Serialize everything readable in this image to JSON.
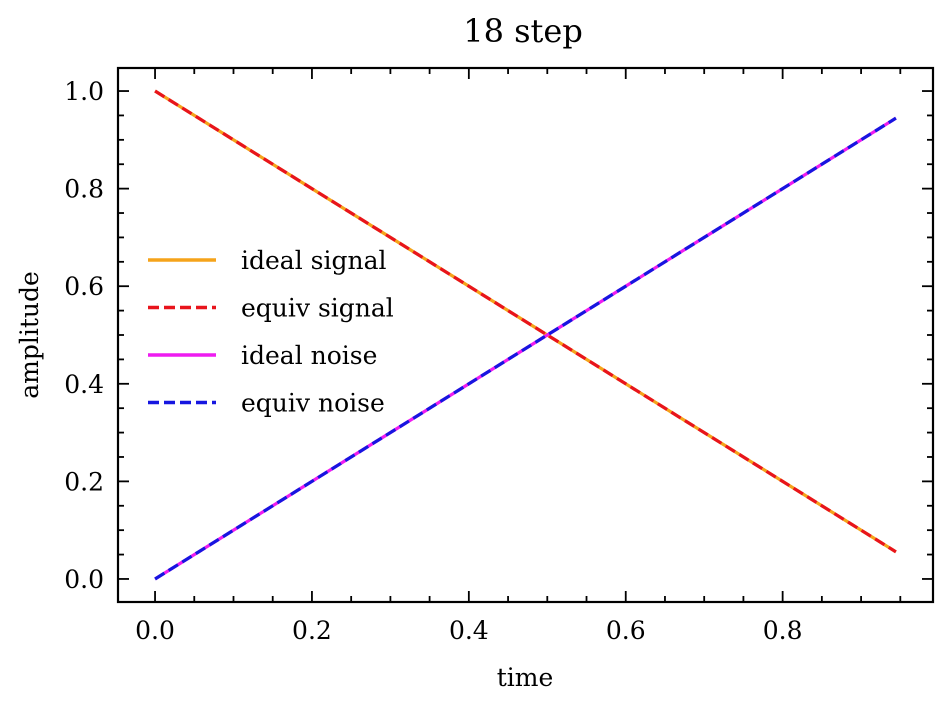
{
  "chart_data": {
    "type": "line",
    "title": "18 step",
    "xlabel": "time",
    "ylabel": "amplitude",
    "xlim": [
      -0.04722,
      0.99167
    ],
    "ylim": [
      -0.04722,
      1.04722
    ],
    "xticks": [
      0.0,
      0.2,
      0.4,
      0.6,
      0.8
    ],
    "xtick_labels": [
      "0.0",
      "0.2",
      "0.4",
      "0.6",
      "0.8"
    ],
    "yticks": [
      0.0,
      0.2,
      0.4,
      0.6,
      0.8,
      1.0
    ],
    "ytick_labels": [
      "0.0",
      "0.2",
      "0.4",
      "0.6",
      "0.8",
      "1.0"
    ],
    "x": [
      0.0,
      0.0556,
      0.1111,
      0.1667,
      0.2222,
      0.2778,
      0.3333,
      0.3889,
      0.4444,
      0.5,
      0.5556,
      0.6111,
      0.6667,
      0.7222,
      0.7778,
      0.8333,
      0.8889,
      0.9444
    ],
    "legend_position": "center-left",
    "series": [
      {
        "name": "ideal signal",
        "color": "#f5a31a",
        "style": "solid",
        "values": [
          1.0,
          0.9444,
          0.8889,
          0.8333,
          0.7778,
          0.7222,
          0.6667,
          0.6111,
          0.5556,
          0.5,
          0.4444,
          0.3889,
          0.3333,
          0.2778,
          0.2222,
          0.1667,
          0.1111,
          0.0556
        ]
      },
      {
        "name": "equiv signal",
        "color": "#e8141c",
        "style": "dashed",
        "values": [
          1.0,
          0.9444,
          0.8889,
          0.8333,
          0.7778,
          0.7222,
          0.6667,
          0.6111,
          0.5556,
          0.5,
          0.4444,
          0.3889,
          0.3333,
          0.2778,
          0.2222,
          0.1667,
          0.1111,
          0.0556
        ]
      },
      {
        "name": "ideal noise",
        "color": "#ee1cf0",
        "style": "solid",
        "values": [
          0.0,
          0.0556,
          0.1111,
          0.1667,
          0.2222,
          0.2778,
          0.3333,
          0.3889,
          0.4444,
          0.5,
          0.5556,
          0.6111,
          0.6667,
          0.7222,
          0.7778,
          0.8333,
          0.8889,
          0.9444
        ]
      },
      {
        "name": "equiv noise",
        "color": "#1616e0",
        "style": "dashed",
        "values": [
          0.0,
          0.0556,
          0.1111,
          0.1667,
          0.2222,
          0.2778,
          0.3333,
          0.3889,
          0.4444,
          0.5,
          0.5556,
          0.6111,
          0.6667,
          0.7222,
          0.7778,
          0.8333,
          0.8889,
          0.9444
        ]
      }
    ]
  }
}
